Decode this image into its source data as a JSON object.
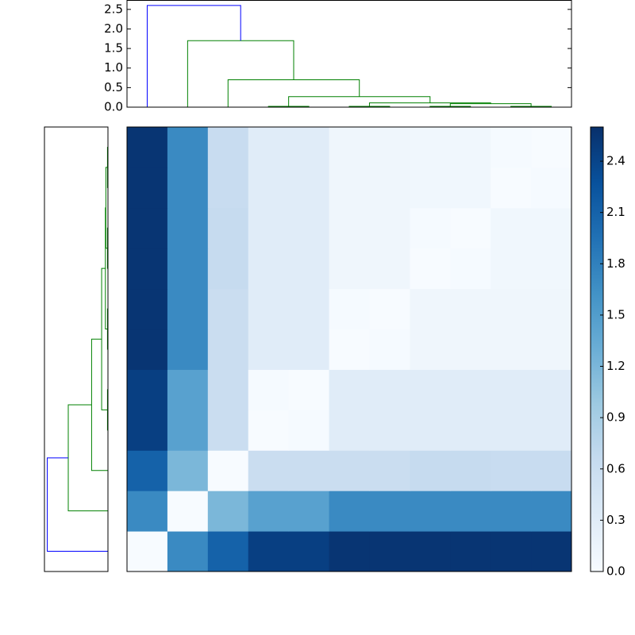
{
  "chart_data": {
    "type": "clustermap",
    "dendrogram": {
      "links": [
        [
          3,
          4,
          0.02
        ],
        [
          5,
          6,
          0.02
        ],
        [
          7,
          8,
          0.02
        ],
        [
          9,
          10,
          0.02
        ],
        [
          13,
          14,
          0.09
        ],
        [
          12,
          15,
          0.11
        ],
        [
          11,
          16,
          0.27
        ],
        [
          2,
          17,
          0.7
        ],
        [
          1,
          18,
          1.7
        ],
        [
          0,
          19,
          2.6
        ]
      ],
      "link_colors": [
        "#008000",
        "#008000",
        "#008000",
        "#008000",
        "#008000",
        "#008000",
        "#008000",
        "#008000",
        "#008000",
        "#0000ff"
      ]
    },
    "ylim": [
      0,
      2.72
    ],
    "yticks": [
      {
        "value": 0,
        "label": "0.0"
      },
      0.5,
      {
        "value": 1,
        "label": "1.0"
      },
      1.5,
      {
        "value": 2,
        "label": "2.0"
      },
      2.5
    ],
    "heatmap": {
      "colormap": "Blues",
      "zlim": [
        0,
        2.6
      ],
      "zticks": [
        {
          "value": 0,
          "label": "0.0"
        },
        0.3,
        0.6,
        0.9,
        1.2,
        1.5,
        1.8,
        2.1,
        2.4
      ],
      "z": [
        [
          0,
          1.7,
          2.1,
          2.45,
          2.45,
          2.55,
          2.55,
          2.55,
          2.55,
          2.55,
          2.55
        ],
        [
          1.7,
          0,
          1.2,
          1.45,
          1.45,
          1.7,
          1.7,
          1.7,
          1.7,
          1.7,
          1.7
        ],
        [
          2.1,
          1.2,
          0,
          0.6,
          0.6,
          0.6,
          0.6,
          0.65,
          0.65,
          0.62,
          0.62
        ],
        [
          2.45,
          1.45,
          0.6,
          0,
          0.02,
          0.3,
          0.3,
          0.3,
          0.3,
          0.3,
          0.3
        ],
        [
          2.45,
          1.45,
          0.6,
          0.02,
          0,
          0.3,
          0.3,
          0.3,
          0.3,
          0.3,
          0.3
        ],
        [
          2.55,
          1.7,
          0.6,
          0.3,
          0.3,
          0,
          0.02,
          0.11,
          0.11,
          0.11,
          0.11
        ],
        [
          2.55,
          1.7,
          0.6,
          0.3,
          0.3,
          0.02,
          0,
          0.11,
          0.11,
          0.11,
          0.11
        ],
        [
          2.55,
          1.7,
          0.65,
          0.3,
          0.3,
          0.11,
          0.11,
          0,
          0.02,
          0.09,
          0.09
        ],
        [
          2.55,
          1.7,
          0.65,
          0.3,
          0.3,
          0.11,
          0.11,
          0.02,
          0,
          0.09,
          0.09
        ],
        [
          2.55,
          1.7,
          0.62,
          0.3,
          0.3,
          0.11,
          0.11,
          0.09,
          0.09,
          0,
          0.02
        ],
        [
          2.55,
          1.7,
          0.62,
          0.3,
          0.3,
          0.11,
          0.11,
          0.09,
          0.09,
          0.02,
          0
        ]
      ]
    }
  }
}
